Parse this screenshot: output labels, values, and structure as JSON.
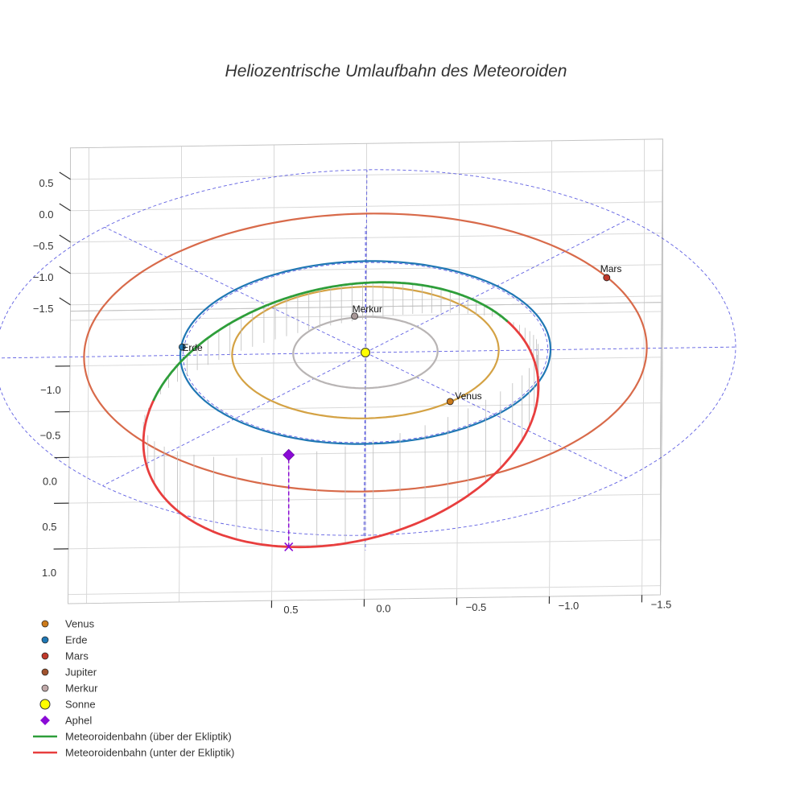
{
  "chart_data": {
    "type": "3d-orbit",
    "title": "Heliozentrische Umlaufbahn des Meteoroiden",
    "axes": {
      "x_ticks": [
        "−1.0",
        "−0.5",
        "0.0",
        "0.5",
        "1.0"
      ],
      "y_ticks": [
        "−1.5",
        "−1.0",
        "−0.5",
        "0.0",
        "0.5"
      ],
      "z_ticks": [
        "−1.5",
        "−1.0",
        "−0.5",
        "0.0",
        "0.5"
      ],
      "xlim": [
        -1.6,
        1.6
      ],
      "ylim": [
        -1.6,
        1.6
      ],
      "zlim": [
        -1.6,
        1.0
      ],
      "grid": true,
      "xlabel": "",
      "ylabel": "",
      "zlabel": ""
    },
    "planet_orbits": [
      {
        "name": "Merkur",
        "radius": 0.39,
        "color": "#b8b4b4"
      },
      {
        "name": "Venus",
        "radius": 0.72,
        "color": "#d4a244"
      },
      {
        "name": "Erde",
        "radius": 1.0,
        "color": "#1f77b4"
      },
      {
        "name": "Mars",
        "radius": 1.52,
        "color": "#d86a4a"
      }
    ],
    "planets": [
      {
        "name": "Venus",
        "x": 0.55,
        "y": -0.46,
        "z": 0,
        "color": "#cc7a1a",
        "labeled": true
      },
      {
        "name": "Erde",
        "x": -0.09,
        "y": 0.99,
        "z": 0,
        "color": "#1f77b4",
        "labeled": true
      },
      {
        "name": "Mars",
        "x": -0.78,
        "y": -1.3,
        "z": 0,
        "color": "#c0392b",
        "labeled": true
      },
      {
        "name": "Merkur",
        "x": -0.4,
        "y": 0.06,
        "z": 0,
        "color": "#a89898",
        "labeled": true
      }
    ],
    "sun": {
      "name": "Sonne",
      "x": 0,
      "y": 0,
      "z": 0,
      "color": "#ffff00"
    },
    "meteoroid_orbit": {
      "a": 1.28,
      "e": 0.47,
      "inclination_deg": 60,
      "node_deg": 66,
      "perihelion_arg_deg": 116,
      "above_label": "Meteoroidenbahn (über der Ekliptik)",
      "below_label": "Meteoroidenbahn (unter der Ekliptik)",
      "above_color": "#2e9e3a",
      "below_color": "#e83e3e"
    },
    "aphelion": {
      "name": "Aphel",
      "color": "#8a0ad6"
    },
    "reference_color": "#4444dd",
    "legend": {
      "placement": "bottom-left",
      "entries": [
        {
          "label": "Venus",
          "kind": "dot",
          "color": "#cc7a1a"
        },
        {
          "label": "Erde",
          "kind": "dot",
          "color": "#1f77b4"
        },
        {
          "label": "Mars",
          "kind": "dot",
          "color": "#c0392b"
        },
        {
          "label": "Jupiter",
          "kind": "dot",
          "color": "#a0522d"
        },
        {
          "label": "Merkur",
          "kind": "dot",
          "color": "#bfa8a8"
        },
        {
          "label": "Sonne",
          "kind": "bigdot",
          "color": "#ffff00"
        },
        {
          "label": "Aphel",
          "kind": "diamond",
          "color": "#8a0ad6"
        },
        {
          "label": "Meteoroidenbahn (über der Ekliptik)",
          "kind": "line",
          "color": "#2e9e3a"
        },
        {
          "label": "Meteoroidenbahn (unter der Ekliptik)",
          "kind": "line",
          "color": "#e83e3e"
        }
      ]
    }
  }
}
